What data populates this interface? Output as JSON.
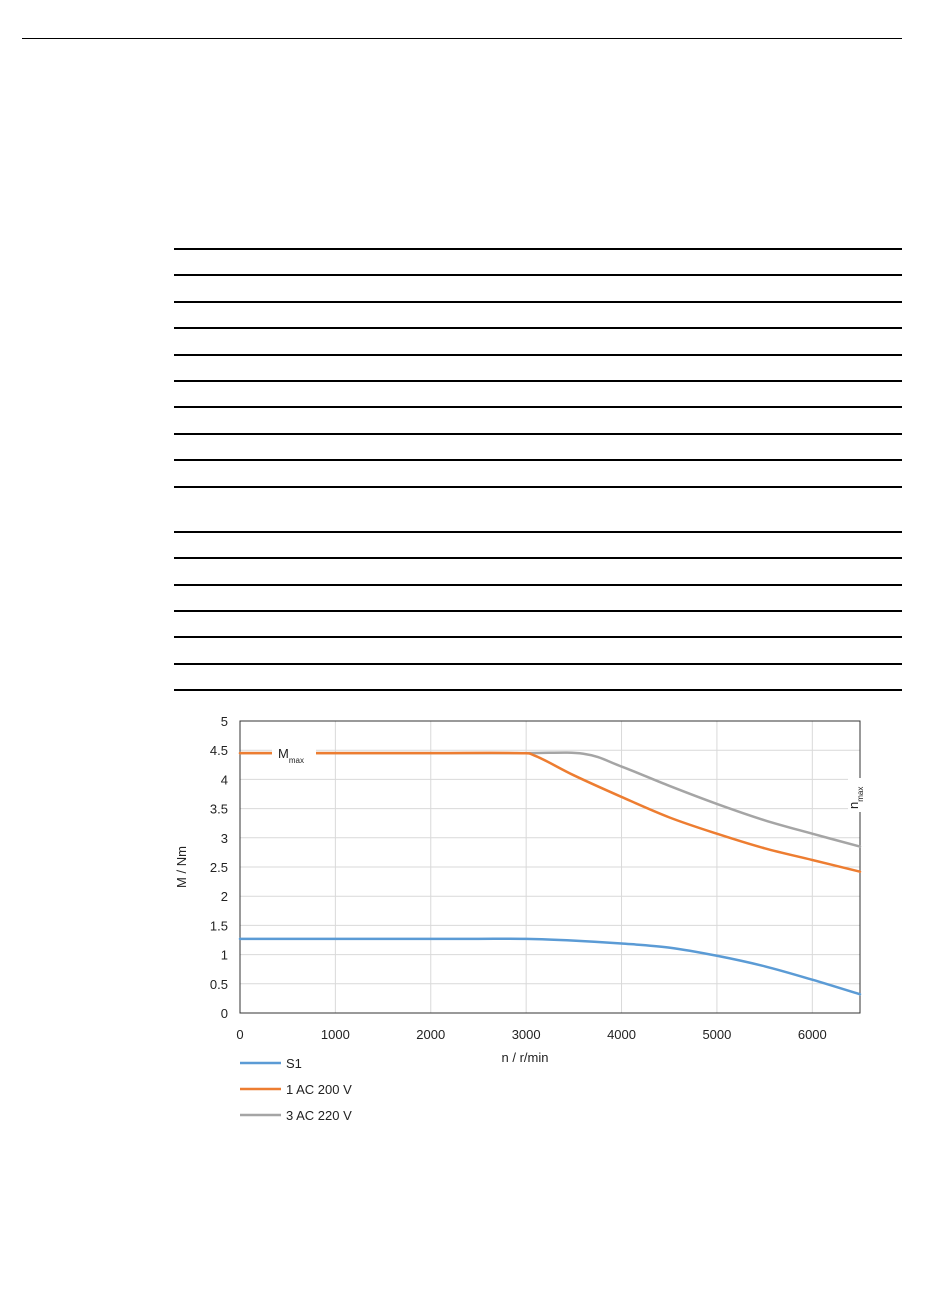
{
  "chart_data": {
    "type": "line",
    "xlabel": "n / r/min",
    "ylabel": "M / Nm",
    "xlim": [
      0,
      6500
    ],
    "ylim": [
      0,
      5
    ],
    "x_ticks": [
      "0",
      "1000",
      "2000",
      "3000",
      "4000",
      "5000",
      "6000"
    ],
    "y_ticks": [
      "0",
      "0.5",
      "1",
      "1.5",
      "2",
      "2.5",
      "3",
      "3.5",
      "4",
      "4.5",
      "5"
    ],
    "grid": true,
    "legend_position": "bottom-left",
    "annotations": {
      "mmax": {
        "main": "M",
        "sub": "max",
        "value": 4.45
      },
      "nmax": {
        "main": "n",
        "sub": "max",
        "value": 6500
      }
    },
    "series": [
      {
        "name": "S1",
        "color": "#5b9bd5",
        "x": [
          0,
          500,
          1000,
          1500,
          2000,
          2500,
          3000,
          3500,
          4000,
          4500,
          5000,
          5500,
          6000,
          6500
        ],
        "y": [
          1.27,
          1.27,
          1.27,
          1.27,
          1.27,
          1.27,
          1.27,
          1.24,
          1.19,
          1.12,
          0.98,
          0.8,
          0.57,
          0.32
        ]
      },
      {
        "name": "1 AC 200 V",
        "color": "#ed7d31",
        "x": [
          0,
          1000,
          2000,
          2900,
          3100,
          3500,
          4000,
          4500,
          5000,
          5500,
          6000,
          6500
        ],
        "y": [
          4.45,
          4.45,
          4.45,
          4.45,
          4.4,
          4.07,
          3.7,
          3.35,
          3.07,
          2.82,
          2.62,
          2.42
        ]
      },
      {
        "name": "3 AC 220 V",
        "color": "#a5a5a5",
        "x": [
          0,
          1000,
          2000,
          3000,
          3600,
          4000,
          4500,
          5000,
          5500,
          6000,
          6500
        ],
        "y": [
          4.45,
          4.45,
          4.45,
          4.45,
          4.44,
          4.22,
          3.89,
          3.58,
          3.3,
          3.07,
          2.85
        ]
      }
    ]
  }
}
